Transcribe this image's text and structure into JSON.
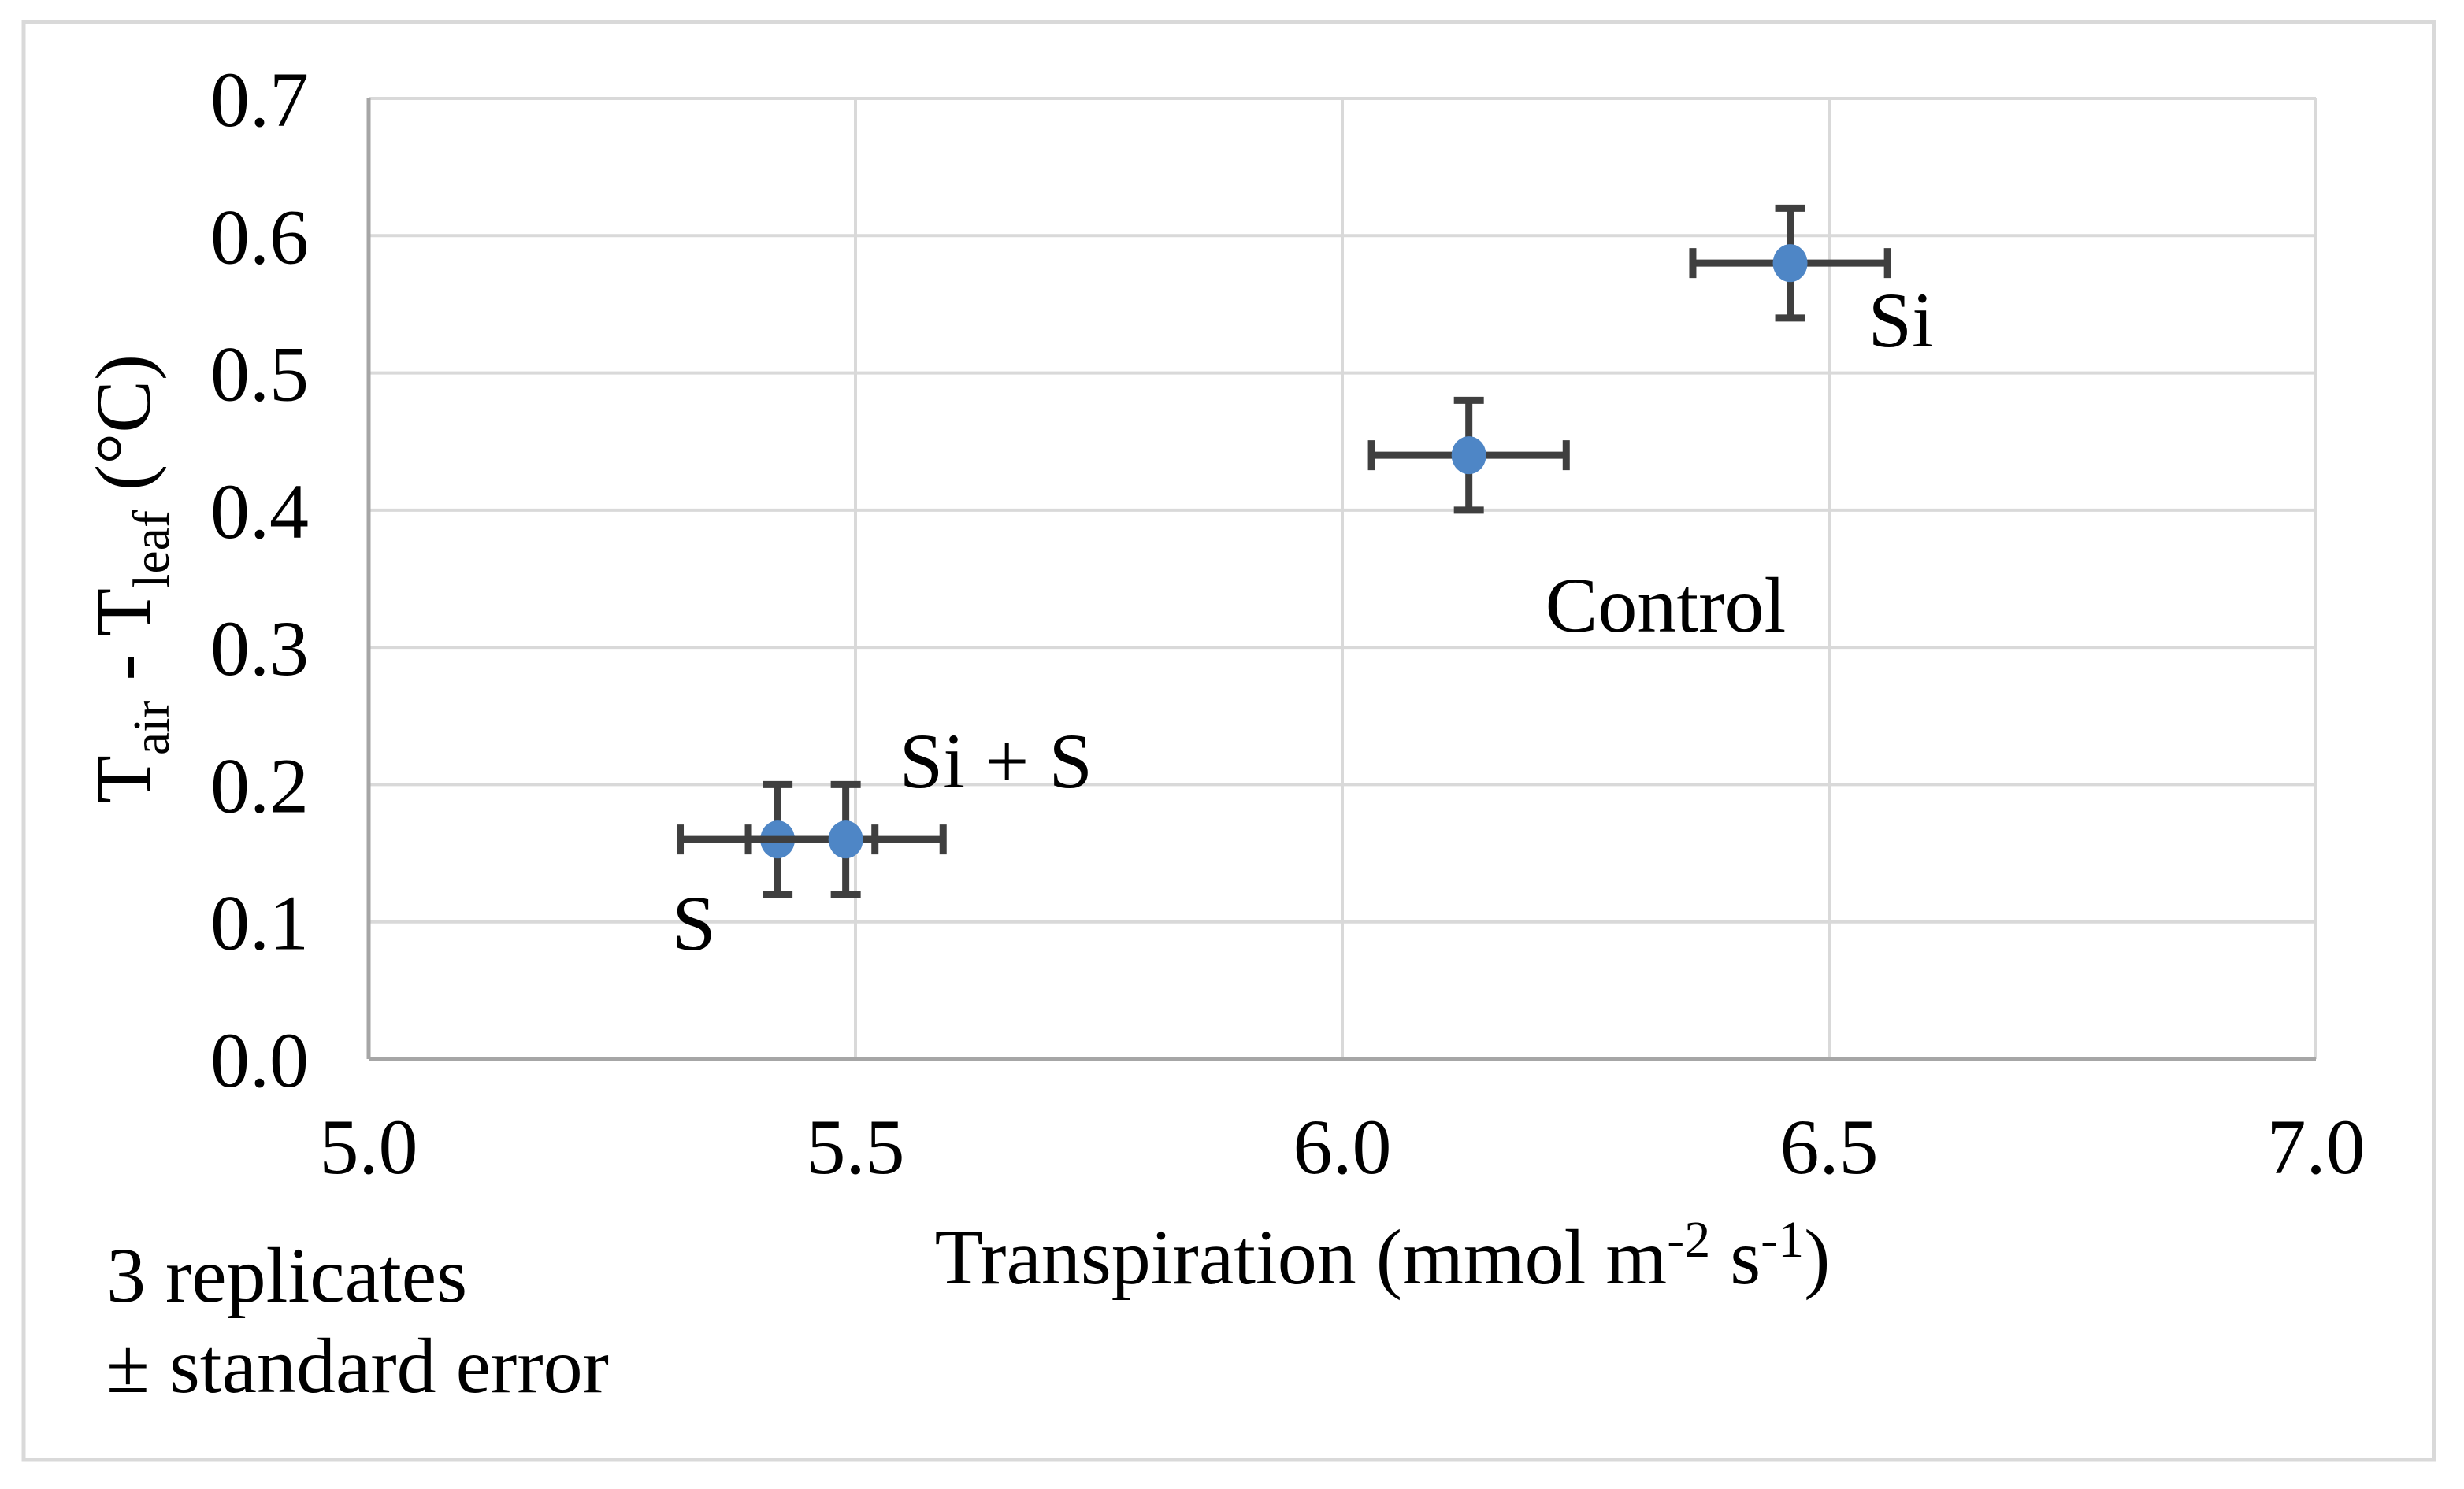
{
  "figure": {
    "background": "#ffffff",
    "border_color": "#d9d9d9",
    "gridline_color": "#d9d9d9",
    "axis_line_color": "#a6a6a6",
    "text_color": "#000000"
  },
  "annotation": {
    "lines": [
      "3 replicates",
      "± standard error"
    ]
  },
  "chart_data": {
    "type": "scatter",
    "title": "",
    "xlabel_text": "Transpiration (mmol m-2 s-1)",
    "ylabel_text": "Tair - Tleaf (°C)",
    "xlabel_segments": [
      {
        "t": "Transpiration (mmol m"
      },
      {
        "t": "-2",
        "style": "sup"
      },
      {
        "t": " s"
      },
      {
        "t": "-1",
        "style": "sup"
      },
      {
        "t": ")"
      }
    ],
    "ylabel_segments": [
      {
        "t": "T"
      },
      {
        "t": "air",
        "style": "sub"
      },
      {
        "t": " - T"
      },
      {
        "t": "leaf",
        "style": "sub"
      },
      {
        "t": " (°C)"
      }
    ],
    "xlim": [
      5.0,
      7.0
    ],
    "ylim": [
      0.0,
      0.7
    ],
    "x_ticks": [
      "5.0",
      "5.5",
      "6.0",
      "6.5",
      "7.0"
    ],
    "y_ticks": [
      "0.0",
      "0.1",
      "0.2",
      "0.3",
      "0.4",
      "0.5",
      "0.6",
      "0.7"
    ],
    "grid": true,
    "legend_position": "none",
    "marker_color": "#4e86c6",
    "error_bar_color": "#3f3f3f",
    "note": "3 replicates ± standard error",
    "series": [
      {
        "label": "S",
        "x": 5.42,
        "y": 0.16,
        "x_err": 0.1,
        "y_err": 0.04,
        "label_dx": -134,
        "label_dy": 140,
        "label_anchor": "start"
      },
      {
        "label": "Si + S",
        "x": 5.49,
        "y": 0.16,
        "x_err": 0.1,
        "y_err": 0.04,
        "label_dx": 68,
        "label_dy": -66,
        "label_anchor": "start"
      },
      {
        "label": "Control",
        "x": 6.13,
        "y": 0.44,
        "x_err": 0.1,
        "y_err": 0.04,
        "label_dx": 97,
        "label_dy": 224,
        "label_anchor": "start"
      },
      {
        "label": "Si",
        "x": 6.46,
        "y": 0.58,
        "x_err": 0.1,
        "y_err": 0.04,
        "label_dx": 99,
        "label_dy": 106,
        "label_anchor": "start"
      }
    ]
  }
}
